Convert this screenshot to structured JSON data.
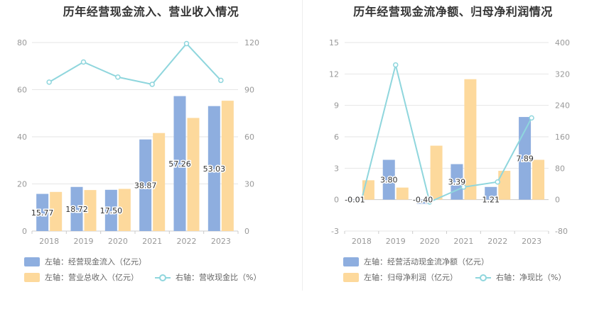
{
  "colors": {
    "bar1": "#8eaedf",
    "bar2": "#fdd99c",
    "line": "#8fd6dd",
    "grid": "#e6e6e6",
    "axis_text": "#999999"
  },
  "chart_data": [
    {
      "type": "bar+line",
      "title": "历年经营现金流入、营业收入情况",
      "categories": [
        "2018",
        "2019",
        "2020",
        "2021",
        "2022",
        "2023"
      ],
      "y_left": {
        "ylim": [
          0,
          80
        ],
        "ticks": [
          "0",
          "20",
          "40",
          "60",
          "80"
        ]
      },
      "y_right": {
        "ylim": [
          0,
          120
        ],
        "ticks": [
          "0",
          "30",
          "60",
          "90",
          "120"
        ]
      },
      "series": [
        {
          "name": "左轴：经营现金流入（亿元）",
          "type": "bar",
          "axis": "left",
          "values": [
            15.77,
            18.72,
            17.5,
            38.87,
            57.26,
            53.03
          ],
          "labels": [
            "15.77",
            "18.72",
            "17.50",
            "38.87",
            "57.26",
            "53.03"
          ]
        },
        {
          "name": "左轴：营业总收入（亿元）",
          "type": "bar",
          "axis": "left",
          "values": [
            16.6,
            17.4,
            17.9,
            41.6,
            48.0,
            55.3
          ]
        },
        {
          "name": "右轴：营收现金比（%）",
          "type": "line",
          "axis": "right",
          "values": [
            94.8,
            107.6,
            98.0,
            93.4,
            119.3,
            95.9
          ]
        }
      ]
    },
    {
      "type": "bar+line",
      "title": "历年经营现金流净额、归母净利润情况",
      "categories": [
        "2018",
        "2019",
        "2020",
        "2021",
        "2022",
        "2023"
      ],
      "y_left": {
        "ylim": [
          -3,
          15
        ],
        "ticks": [
          "-3",
          "0",
          "3",
          "6",
          "9",
          "12",
          "15"
        ]
      },
      "y_right": {
        "ylim": [
          -80,
          400
        ],
        "ticks": [
          "-80",
          "0",
          "80",
          "160",
          "240",
          "320",
          "400"
        ]
      },
      "series": [
        {
          "name": "左轴：经营活动现金流净额（亿元）",
          "type": "bar",
          "axis": "left",
          "values": [
            -0.01,
            3.8,
            -0.4,
            3.39,
            1.21,
            7.89
          ],
          "labels": [
            "-0.01",
            "3.80",
            "-0.40",
            "3.39",
            "1.21",
            "7.89"
          ]
        },
        {
          "name": "左轴：归母净利润（亿元）",
          "type": "bar",
          "axis": "left",
          "values": [
            1.85,
            1.15,
            5.15,
            11.5,
            2.75,
            3.8
          ]
        },
        {
          "name": "右轴：净现比（%）",
          "type": "line",
          "axis": "right",
          "values": [
            0,
            343,
            -6,
            32,
            45,
            208
          ]
        }
      ]
    }
  ]
}
